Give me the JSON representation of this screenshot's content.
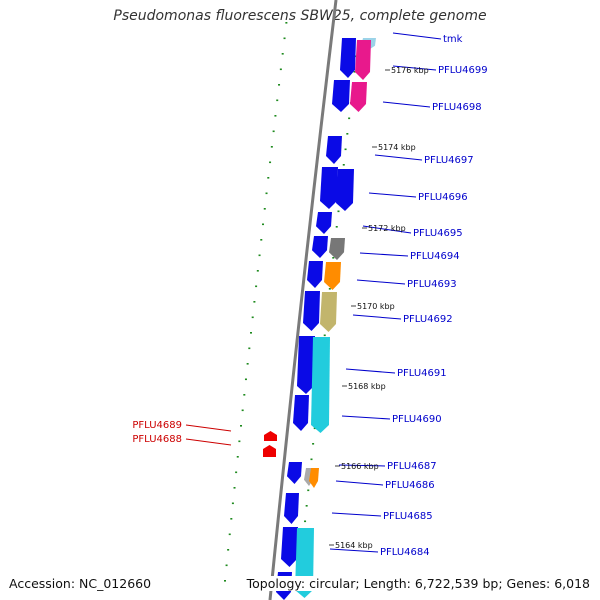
{
  "title": "Pseudomonas fluorescens SBW25, complete genome",
  "footer": {
    "accession": "Accession: NC_012660",
    "summary": "Topology: circular; Length: 6,722,539 bp; Genes: 6,018"
  },
  "colors": {
    "backbone": "#7a7a7a",
    "gene_forward": "#0a0ae6",
    "gene_reverse_red": "#ee0000",
    "tick": "#1e8a1e",
    "label_blue": "#0000cc",
    "label_red": "#cc0000",
    "magenta": "#e8198c",
    "cyan": "#22ccdd",
    "orange": "#ff8c00",
    "khaki": "#c2b56c",
    "grey": "#777777",
    "light": "#9bd3e8"
  },
  "genes": [
    {
      "label": "tmk",
      "color": "label_blue"
    },
    {
      "label": "PFLU4699",
      "color": "label_blue"
    },
    {
      "label": "PFLU4698",
      "color": "label_blue"
    },
    {
      "label": "PFLU4697",
      "color": "label_blue"
    },
    {
      "label": "PFLU4696",
      "color": "label_blue"
    },
    {
      "label": "PFLU4695",
      "color": "label_blue"
    },
    {
      "label": "PFLU4694",
      "color": "label_blue"
    },
    {
      "label": "PFLU4693",
      "color": "label_blue"
    },
    {
      "label": "PFLU4692",
      "color": "label_blue"
    },
    {
      "label": "PFLU4691",
      "color": "label_blue"
    },
    {
      "label": "PFLU4690",
      "color": "label_blue"
    },
    {
      "label": "PFLU4689",
      "color": "label_red"
    },
    {
      "label": "PFLU4688",
      "color": "label_red"
    },
    {
      "label": "PFLU4687",
      "color": "label_blue"
    },
    {
      "label": "PFLU4686",
      "color": "label_blue"
    },
    {
      "label": "PFLU4685",
      "color": "label_blue"
    },
    {
      "label": "PFLU4684",
      "color": "label_blue"
    }
  ],
  "kbp_labels": [
    "5176 kbp",
    "5174 kbp",
    "5172 kbp",
    "5170 kbp",
    "5168 kbp",
    "5166 kbp",
    "5164 kbp"
  ]
}
